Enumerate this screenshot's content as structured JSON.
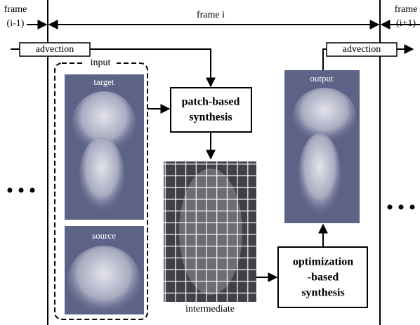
{
  "frames": {
    "previous": {
      "line1": "frame",
      "line2": "(i-1)"
    },
    "current": "frame i",
    "next": {
      "line1": "frame",
      "line2": "(i+1)"
    }
  },
  "advection_in": "advection",
  "advection_out": "advection",
  "input": {
    "label": "input",
    "target": "target",
    "source": "source"
  },
  "patch_synthesis": {
    "line1": "patch-based",
    "line2": "synthesis"
  },
  "intermediate": "intermediate",
  "optimization_synthesis": {
    "line1": "optimization",
    "line2": "-based",
    "line3": "synthesis"
  },
  "output": "output"
}
